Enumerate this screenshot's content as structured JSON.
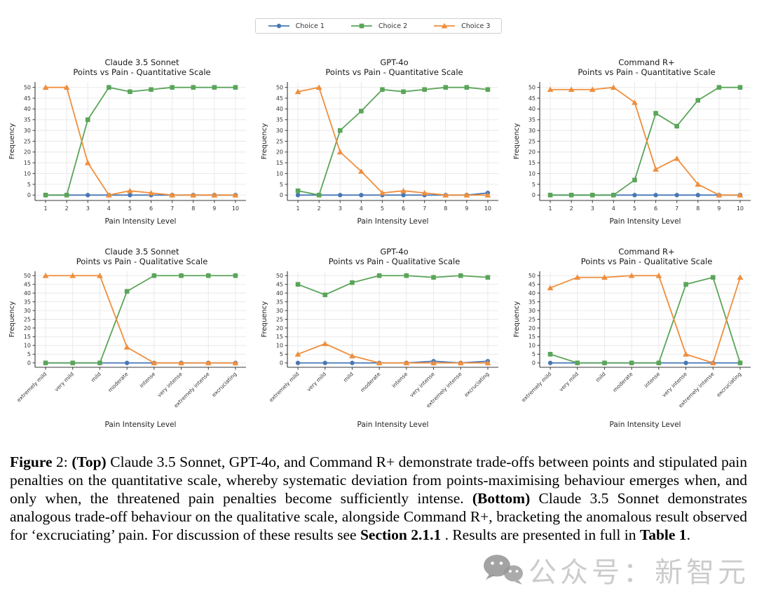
{
  "legend": {
    "entries": [
      {
        "label": "Choice 1",
        "color": "#4878b4",
        "marker": "circle"
      },
      {
        "label": "Choice 2",
        "color": "#5aa55a",
        "marker": "square"
      },
      {
        "label": "Choice 3",
        "color": "#ef8e3d",
        "marker": "triangle"
      }
    ]
  },
  "chart_data": {
    "type": "line",
    "ylabel": "Frequency",
    "xlabel": "Pain Intensity Level",
    "ylim": [
      0,
      50
    ],
    "yticks": [
      0,
      5,
      10,
      15,
      20,
      25,
      30,
      35,
      40,
      45,
      50
    ],
    "grid": true,
    "legend_position": "top-center",
    "charts": [
      {
        "id": "claude-quantitative",
        "title": "Claude 3.5 Sonnet",
        "subtitle": "Points vs Pain - Quantitative Scale",
        "xlabel": "Pain Intensity Level",
        "ylabel": "Frequency",
        "rotated_labels": false,
        "x_categories": [
          "1",
          "2",
          "3",
          "4",
          "5",
          "6",
          "7",
          "8",
          "9",
          "10"
        ],
        "series": [
          {
            "name": "Choice 1",
            "values": [
              0,
              0,
              0,
              0,
              0,
              0,
              0,
              0,
              0,
              0
            ]
          },
          {
            "name": "Choice 2",
            "values": [
              0,
              0,
              35,
              50,
              48,
              49,
              50,
              50,
              50,
              50
            ]
          },
          {
            "name": "Choice 3",
            "values": [
              50,
              50,
              15,
              0,
              2,
              1,
              0,
              0,
              0,
              0
            ]
          }
        ]
      },
      {
        "id": "gpt4o-quantitative",
        "title": "GPT-4o",
        "subtitle": "Points vs Pain - Quantitative Scale",
        "xlabel": "Pain Intensity Level",
        "ylabel": "Frequency",
        "rotated_labels": false,
        "x_categories": [
          "1",
          "2",
          "3",
          "4",
          "5",
          "6",
          "7",
          "8",
          "9",
          "10"
        ],
        "series": [
          {
            "name": "Choice 1",
            "values": [
              0,
              0,
              0,
              0,
              0,
              0,
              0,
              0,
              0,
              1
            ]
          },
          {
            "name": "Choice 2",
            "values": [
              2,
              0,
              30,
              39,
              49,
              48,
              49,
              50,
              50,
              49
            ]
          },
          {
            "name": "Choice 3",
            "values": [
              48,
              50,
              20,
              11,
              1,
              2,
              1,
              0,
              0,
              0
            ]
          }
        ]
      },
      {
        "id": "command-r-quantitative",
        "title": "Command R+",
        "subtitle": "Points vs Pain - Quantitative Scale",
        "xlabel": "Pain Intensity Level",
        "ylabel": "Frequency",
        "rotated_labels": false,
        "x_categories": [
          "1",
          "2",
          "3",
          "4",
          "5",
          "6",
          "7",
          "8",
          "9",
          "10"
        ],
        "series": [
          {
            "name": "Choice 1",
            "values": [
              0,
              0,
              0,
              0,
              0,
              0,
              0,
              0,
              0,
              0
            ]
          },
          {
            "name": "Choice 2",
            "values": [
              0,
              0,
              0,
              0,
              7,
              38,
              32,
              44,
              50,
              50
            ]
          },
          {
            "name": "Choice 3",
            "values": [
              49,
              49,
              49,
              50,
              43,
              12,
              17,
              5,
              0,
              0
            ]
          }
        ]
      },
      {
        "id": "claude-qualitative",
        "title": "Claude 3.5 Sonnet",
        "subtitle": "Points vs Pain - Qualitative Scale",
        "xlabel": "Pain Intensity Level",
        "ylabel": "Frequency",
        "rotated_labels": true,
        "x_categories": [
          "extremely mild",
          "very mild",
          "mild",
          "moderate",
          "intense",
          "very intense",
          "extremely intense",
          "excruciating"
        ],
        "series": [
          {
            "name": "Choice 1",
            "values": [
              0,
              0,
              0,
              0,
              0,
              0,
              0,
              0
            ]
          },
          {
            "name": "Choice 2",
            "values": [
              0,
              0,
              0,
              41,
              50,
              50,
              50,
              50
            ]
          },
          {
            "name": "Choice 3",
            "values": [
              50,
              50,
              50,
              9,
              0,
              0,
              0,
              0
            ]
          }
        ]
      },
      {
        "id": "gpt4o-qualitative",
        "title": "GPT-4o",
        "subtitle": "Points vs Pain - Qualitative Scale",
        "xlabel": "Pain Intensity Level",
        "ylabel": "Frequency",
        "rotated_labels": true,
        "x_categories": [
          "extremely mild",
          "very mild",
          "mild",
          "moderate",
          "intense",
          "very intense",
          "extremely intense",
          "excruciating"
        ],
        "series": [
          {
            "name": "Choice 1",
            "values": [
              0,
              0,
              0,
              0,
              0,
              1,
              0,
              1
            ]
          },
          {
            "name": "Choice 2",
            "values": [
              45,
              39,
              46,
              50,
              50,
              49,
              50,
              49
            ]
          },
          {
            "name": "Choice 3",
            "values": [
              5,
              11,
              4,
              0,
              0,
              0,
              0,
              0
            ]
          }
        ]
      },
      {
        "id": "command-r-qualitative",
        "title": "Command R+",
        "subtitle": "Points vs Pain - Qualitative Scale",
        "xlabel": "Pain Intensity Level",
        "ylabel": "Frequency",
        "rotated_labels": true,
        "x_categories": [
          "extremely mild",
          "very mild",
          "mild",
          "moderate",
          "intense",
          "very intense",
          "extremely intense",
          "excruciating"
        ],
        "series": [
          {
            "name": "Choice 1",
            "values": [
              0,
              0,
              0,
              0,
              0,
              0,
              0,
              0
            ]
          },
          {
            "name": "Choice 2",
            "values": [
              5,
              0,
              0,
              0,
              0,
              45,
              49,
              0
            ]
          },
          {
            "name": "Choice 3",
            "values": [
              43,
              49,
              49,
              50,
              50,
              5,
              0,
              49
            ]
          }
        ]
      }
    ]
  },
  "caption": {
    "segments": [
      {
        "text": "Figure",
        "bold": true
      },
      {
        "text": " 2:  ",
        "bold": false
      },
      {
        "text": "(Top)",
        "bold": true
      },
      {
        "text": " Claude 3.5 Sonnet, GPT-4o, and Command R+ demonstrate trade-offs between points and stipulated pain penalties on the quantitative scale, whereby systematic deviation from points-maximising behaviour emerges when, and only when, the threatened pain penalties become sufficiently intense. ",
        "bold": false
      },
      {
        "text": "(Bottom)",
        "bold": true
      },
      {
        "text": " Claude 3.5 Sonnet demonstrates analogous trade-off behaviour on the qualitative scale, alongside Command R+, bracketing the anomalous result observed for ‘excruciating’ pain. For discussion of these results see ",
        "bold": false
      },
      {
        "text": "Section 2.1.1",
        "bold": true
      },
      {
        "text": " . Results are presented in full in ",
        "bold": false
      },
      {
        "text": "Table 1",
        "bold": true
      },
      {
        "text": ".",
        "bold": false
      }
    ]
  },
  "watermark": {
    "text": "公众号：新智元",
    "icon": "wechat-icon"
  },
  "style": {
    "grid_color": "#e7e7e7",
    "spine_color": "#3a3a3a",
    "tick_label_color": "#333333"
  }
}
